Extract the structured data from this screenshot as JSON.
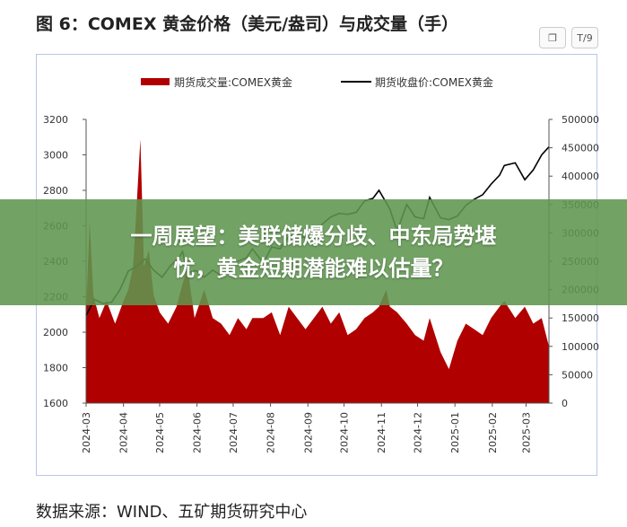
{
  "title": "图 6：COMEX 黄金价格（美元/盎司）与成交量（手）",
  "source": "数据来源：WIND、五矿期货研究中心",
  "banner": {
    "line1": "一周展望：美联储爆分歧、中东局势堪",
    "line2": "忧，黄金短期潜能难以估量？"
  },
  "toolbar": {
    "copy_icon": "copy-icon",
    "translate_label": "T/9"
  },
  "colors": {
    "volume": "#b00000",
    "price": "#000000"
  },
  "chart_data": {
    "type": "bar+line",
    "legend": {
      "volume": "期货成交量:COMEX黄金",
      "price": "期货收盘价:COMEX黄金",
      "placement": "top"
    },
    "y_left": {
      "min": 1600,
      "max": 3200,
      "ticks": [
        "1600",
        "1800",
        "2000",
        "2200",
        "2400",
        "2600",
        "2800",
        "3000",
        "3200"
      ]
    },
    "y_right": {
      "min": 0,
      "max": 500000,
      "ticks": [
        "0",
        "50000",
        "100000",
        "150000",
        "200000",
        "250000",
        "300000",
        "350000",
        "400000",
        "450000",
        "500000"
      ]
    },
    "x_ticks": [
      "2024-03",
      "2024-04",
      "2024-05",
      "2024-06",
      "2024-07",
      "2024-08",
      "2024-09",
      "2024-10",
      "2024-11",
      "2024-12",
      "2025-01",
      "2025-02",
      "2025-03"
    ],
    "x_range": [
      "2024-03-01",
      "2025-03-20"
    ],
    "price": [
      [
        "2024-03-01",
        2095
      ],
      [
        "2024-03-08",
        2185
      ],
      [
        "2024-03-15",
        2162
      ],
      [
        "2024-03-22",
        2168
      ],
      [
        "2024-03-29",
        2238
      ],
      [
        "2024-04-05",
        2345
      ],
      [
        "2024-04-12",
        2372
      ],
      [
        "2024-04-19",
        2413
      ],
      [
        "2024-04-26",
        2350
      ],
      [
        "2024-05-03",
        2310
      ],
      [
        "2024-05-10",
        2375
      ],
      [
        "2024-05-17",
        2420
      ],
      [
        "2024-05-20",
        2455
      ],
      [
        "2024-05-24",
        2335
      ],
      [
        "2024-05-31",
        2348
      ],
      [
        "2024-06-07",
        2310
      ],
      [
        "2024-06-14",
        2350
      ],
      [
        "2024-06-21",
        2320
      ],
      [
        "2024-06-28",
        2340
      ],
      [
        "2024-07-05",
        2400
      ],
      [
        "2024-07-12",
        2420
      ],
      [
        "2024-07-17",
        2470
      ],
      [
        "2024-07-26",
        2390
      ],
      [
        "2024-08-02",
        2480
      ],
      [
        "2024-08-09",
        2470
      ],
      [
        "2024-08-16",
        2540
      ],
      [
        "2024-08-23",
        2550
      ],
      [
        "2024-08-30",
        2530
      ],
      [
        "2024-09-06",
        2525
      ],
      [
        "2024-09-13",
        2610
      ],
      [
        "2024-09-20",
        2650
      ],
      [
        "2024-09-27",
        2670
      ],
      [
        "2024-10-04",
        2665
      ],
      [
        "2024-10-11",
        2675
      ],
      [
        "2024-10-18",
        2740
      ],
      [
        "2024-10-25",
        2755
      ],
      [
        "2024-10-30",
        2800
      ],
      [
        "2024-11-08",
        2695
      ],
      [
        "2024-11-14",
        2570
      ],
      [
        "2024-11-22",
        2720
      ],
      [
        "2024-11-29",
        2650
      ],
      [
        "2024-12-06",
        2640
      ],
      [
        "2024-12-11",
        2760
      ],
      [
        "2024-12-20",
        2645
      ],
      [
        "2024-12-27",
        2635
      ],
      [
        "2025-01-03",
        2655
      ],
      [
        "2025-01-10",
        2715
      ],
      [
        "2025-01-17",
        2750
      ],
      [
        "2025-01-24",
        2775
      ],
      [
        "2025-01-31",
        2835
      ],
      [
        "2025-02-07",
        2885
      ],
      [
        "2025-02-11",
        2940
      ],
      [
        "2025-02-20",
        2955
      ],
      [
        "2025-02-28",
        2860
      ],
      [
        "2025-03-07",
        2915
      ],
      [
        "2025-03-14",
        3000
      ],
      [
        "2025-03-20",
        3045
      ]
    ],
    "volume": [
      [
        "2024-03-01",
        160000
      ],
      [
        "2024-03-04",
        320000
      ],
      [
        "2024-03-07",
        190000
      ],
      [
        "2024-03-12",
        150000
      ],
      [
        "2024-03-18",
        180000
      ],
      [
        "2024-03-25",
        140000
      ],
      [
        "2024-04-01",
        180000
      ],
      [
        "2024-04-05",
        200000
      ],
      [
        "2024-04-09",
        240000
      ],
      [
        "2024-04-12",
        350000
      ],
      [
        "2024-04-15",
        465000
      ],
      [
        "2024-04-18",
        240000
      ],
      [
        "2024-04-22",
        270000
      ],
      [
        "2024-04-26",
        190000
      ],
      [
        "2024-05-01",
        160000
      ],
      [
        "2024-05-08",
        140000
      ],
      [
        "2024-05-15",
        170000
      ],
      [
        "2024-05-20",
        210000
      ],
      [
        "2024-05-24",
        240000
      ],
      [
        "2024-05-30",
        150000
      ],
      [
        "2024-06-07",
        200000
      ],
      [
        "2024-06-14",
        150000
      ],
      [
        "2024-06-21",
        140000
      ],
      [
        "2024-06-28",
        120000
      ],
      [
        "2024-07-05",
        150000
      ],
      [
        "2024-07-12",
        130000
      ],
      [
        "2024-07-17",
        150000
      ],
      [
        "2024-07-26",
        150000
      ],
      [
        "2024-08-02",
        160000
      ],
      [
        "2024-08-09",
        120000
      ],
      [
        "2024-08-16",
        170000
      ],
      [
        "2024-08-23",
        150000
      ],
      [
        "2024-08-30",
        130000
      ],
      [
        "2024-09-06",
        150000
      ],
      [
        "2024-09-13",
        170000
      ],
      [
        "2024-09-20",
        140000
      ],
      [
        "2024-09-27",
        160000
      ],
      [
        "2024-10-04",
        120000
      ],
      [
        "2024-10-11",
        130000
      ],
      [
        "2024-10-18",
        150000
      ],
      [
        "2024-10-25",
        160000
      ],
      [
        "2024-10-30",
        170000
      ],
      [
        "2024-11-05",
        200000
      ],
      [
        "2024-11-08",
        170000
      ],
      [
        "2024-11-14",
        160000
      ],
      [
        "2024-11-22",
        140000
      ],
      [
        "2024-11-29",
        120000
      ],
      [
        "2024-12-06",
        110000
      ],
      [
        "2024-12-11",
        150000
      ],
      [
        "2024-12-20",
        90000
      ],
      [
        "2024-12-27",
        60000
      ],
      [
        "2025-01-03",
        110000
      ],
      [
        "2025-01-10",
        140000
      ],
      [
        "2025-01-17",
        130000
      ],
      [
        "2025-01-24",
        120000
      ],
      [
        "2025-01-31",
        150000
      ],
      [
        "2025-02-07",
        170000
      ],
      [
        "2025-02-11",
        180000
      ],
      [
        "2025-02-20",
        150000
      ],
      [
        "2025-02-28",
        170000
      ],
      [
        "2025-03-07",
        140000
      ],
      [
        "2025-03-14",
        150000
      ],
      [
        "2025-03-20",
        100000
      ]
    ]
  }
}
